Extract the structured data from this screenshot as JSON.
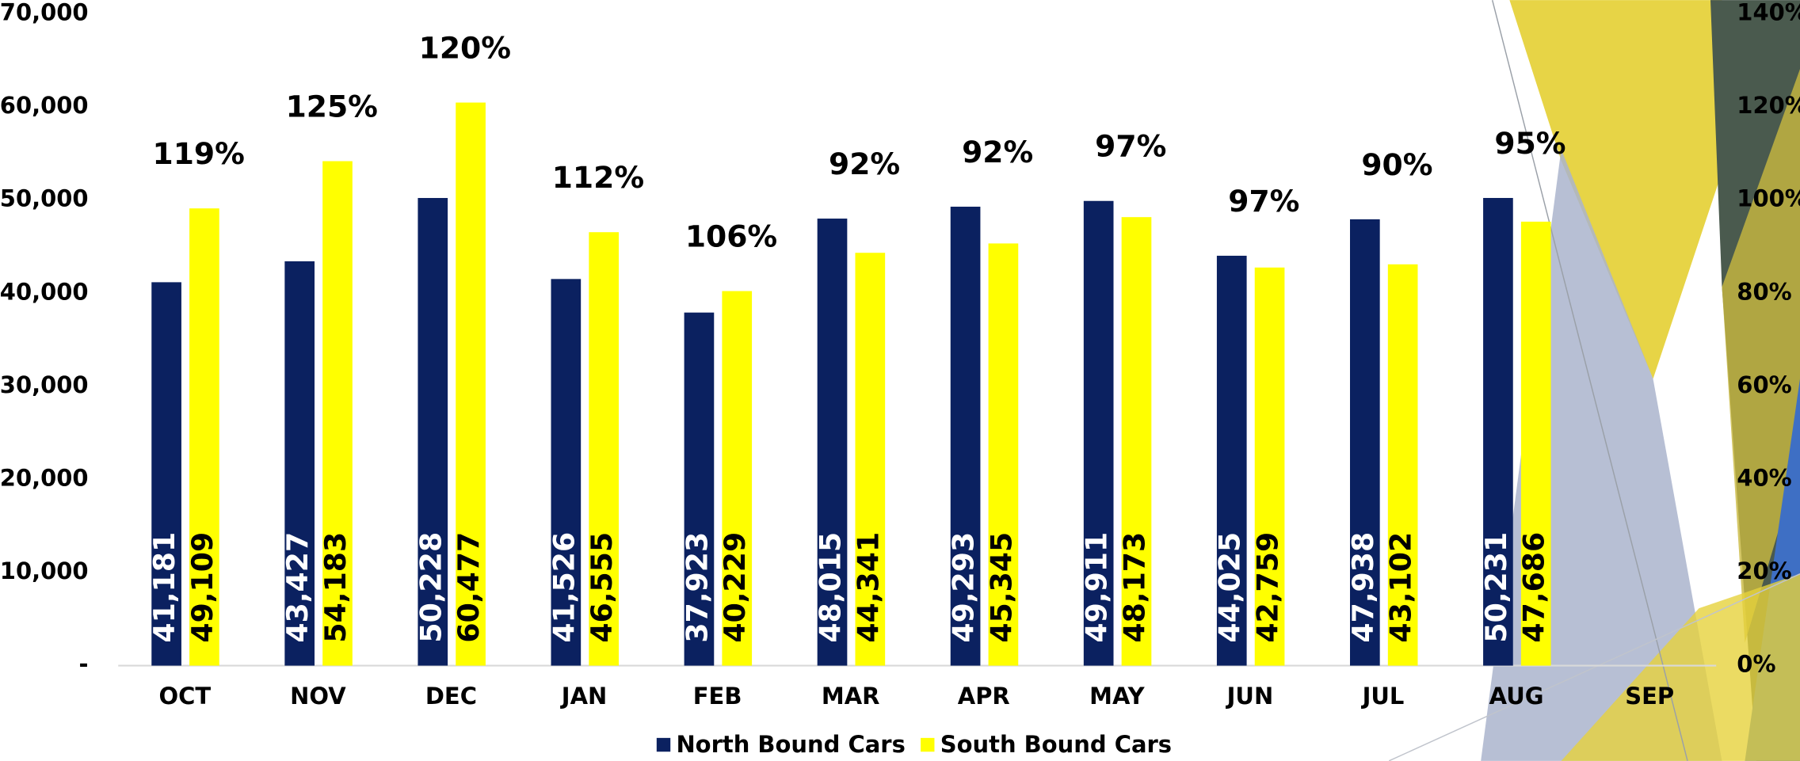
{
  "chart_data": {
    "type": "bar",
    "categories": [
      "OCT",
      "NOV",
      "DEC",
      "JAN",
      "FEB",
      "MAR",
      "APR",
      "MAY",
      "JUN",
      "JUL",
      "AUG",
      "SEP"
    ],
    "series": [
      {
        "name": "North Bound Cars",
        "color": "#0b2160",
        "values": [
          41181,
          43427,
          50228,
          41526,
          37923,
          48015,
          49293,
          49911,
          44025,
          47938,
          50231,
          null
        ],
        "value_labels": [
          "41,181",
          "43,427",
          "50,228",
          "41,526",
          "37,923",
          "48,015",
          "49,293",
          "49,911",
          "44,025",
          "47,938",
          "50,231",
          null
        ]
      },
      {
        "name": "South Bound Cars",
        "color": "#ffff00",
        "values": [
          49109,
          54183,
          60477,
          46555,
          40229,
          44341,
          45345,
          48173,
          42759,
          43102,
          47686,
          null
        ],
        "value_labels": [
          "49,109",
          "54,183",
          "60,477",
          "46,555",
          "40,229",
          "44,341",
          "45,345",
          "48,173",
          "42,759",
          "43,102",
          "47,686",
          null
        ]
      }
    ],
    "annotations": [
      "119%",
      "125%",
      "120%",
      "112%",
      "106%",
      "92%",
      "92%",
      "97%",
      "97%",
      "90%",
      "95%"
    ],
    "ylim": [
      0,
      70000
    ],
    "yticks": [
      {
        "value": 0,
        "label": "-"
      },
      {
        "value": 10000,
        "label": "10,000"
      },
      {
        "value": 20000,
        "label": "20,000"
      },
      {
        "value": 30000,
        "label": "30,000"
      },
      {
        "value": 40000,
        "label": "40,000"
      },
      {
        "value": 50000,
        "label": "50,000"
      },
      {
        "value": 60000,
        "label": "60,000"
      },
      {
        "value": 70000,
        "label": "70,000"
      }
    ],
    "y2lim": [
      0,
      140
    ],
    "y2ticks": [
      {
        "value": 0,
        "label": "0%"
      },
      {
        "value": 20,
        "label": "20%"
      },
      {
        "value": 40,
        "label": "40%"
      },
      {
        "value": 60,
        "label": "60%"
      },
      {
        "value": 80,
        "label": "80%"
      },
      {
        "value": 100,
        "label": "100%"
      },
      {
        "value": 120,
        "label": "120%"
      },
      {
        "value": 140,
        "label": "140%"
      }
    ],
    "legend": "bottom",
    "grid": false
  }
}
